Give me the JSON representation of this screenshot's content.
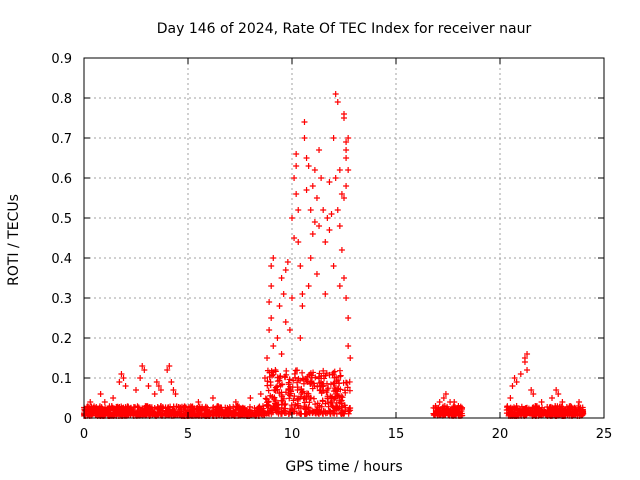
{
  "chart_data": {
    "type": "scatter",
    "title": "Day 146 of 2024, Rate Of TEC Index for receiver naur",
    "xlabel": "GPS time / hours",
    "ylabel": "ROTI / TECUs",
    "xlim": [
      0,
      25
    ],
    "ylim": [
      0,
      0.9
    ],
    "xticks": [
      "0",
      "5",
      "10",
      "15",
      "20",
      "25"
    ],
    "yticks": [
      "0",
      "0.1",
      "0.2",
      "0.3",
      "0.4",
      "0.5",
      "0.6",
      "0.7",
      "0.8",
      "0.9"
    ],
    "grid": true,
    "marker": "plus",
    "color": "#ff0000",
    "segments": [
      {
        "x_range": [
          0.0,
          8.7
        ],
        "baseline_range": [
          0.005,
          0.03
        ]
      },
      {
        "x_range": [
          8.7,
          12.8
        ],
        "baseline_range": [
          0.01,
          0.12
        ]
      },
      {
        "x_range": [
          16.8,
          18.2
        ],
        "baseline_range": [
          0.005,
          0.03
        ]
      },
      {
        "x_range": [
          20.3,
          24.0
        ],
        "baseline_range": [
          0.005,
          0.03
        ]
      }
    ],
    "points": [
      [
        0.3,
        0.04
      ],
      [
        0.8,
        0.06
      ],
      [
        1.0,
        0.04
      ],
      [
        1.4,
        0.05
      ],
      [
        1.7,
        0.09
      ],
      [
        1.8,
        0.11
      ],
      [
        1.9,
        0.1
      ],
      [
        2.0,
        0.08
      ],
      [
        2.5,
        0.07
      ],
      [
        2.7,
        0.1
      ],
      [
        2.8,
        0.13
      ],
      [
        2.9,
        0.12
      ],
      [
        3.1,
        0.08
      ],
      [
        3.4,
        0.06
      ],
      [
        3.5,
        0.09
      ],
      [
        3.6,
        0.08
      ],
      [
        3.7,
        0.07
      ],
      [
        4.0,
        0.12
      ],
      [
        4.1,
        0.13
      ],
      [
        4.2,
        0.09
      ],
      [
        4.3,
        0.07
      ],
      [
        4.4,
        0.06
      ],
      [
        5.5,
        0.04
      ],
      [
        6.2,
        0.05
      ],
      [
        7.3,
        0.04
      ],
      [
        8.0,
        0.05
      ],
      [
        8.5,
        0.06
      ],
      [
        8.7,
        0.1
      ],
      [
        8.8,
        0.15
      ],
      [
        8.9,
        0.22
      ],
      [
        8.9,
        0.29
      ],
      [
        9.0,
        0.33
      ],
      [
        9.0,
        0.38
      ],
      [
        9.1,
        0.4
      ],
      [
        9.0,
        0.25
      ],
      [
        9.1,
        0.18
      ],
      [
        9.2,
        0.12
      ],
      [
        9.3,
        0.2
      ],
      [
        9.4,
        0.28
      ],
      [
        9.5,
        0.35
      ],
      [
        9.6,
        0.31
      ],
      [
        9.7,
        0.37
      ],
      [
        9.8,
        0.39
      ],
      [
        9.7,
        0.24
      ],
      [
        9.9,
        0.22
      ],
      [
        10.0,
        0.3
      ],
      [
        10.0,
        0.5
      ],
      [
        10.1,
        0.45
      ],
      [
        10.1,
        0.6
      ],
      [
        10.2,
        0.56
      ],
      [
        10.2,
        0.63
      ],
      [
        10.2,
        0.66
      ],
      [
        10.3,
        0.44
      ],
      [
        10.3,
        0.52
      ],
      [
        10.4,
        0.38
      ],
      [
        10.5,
        0.31
      ],
      [
        10.6,
        0.74
      ],
      [
        10.6,
        0.7
      ],
      [
        10.7,
        0.57
      ],
      [
        10.7,
        0.65
      ],
      [
        10.8,
        0.63
      ],
      [
        10.9,
        0.4
      ],
      [
        10.9,
        0.52
      ],
      [
        11.0,
        0.46
      ],
      [
        11.0,
        0.58
      ],
      [
        11.1,
        0.49
      ],
      [
        11.1,
        0.62
      ],
      [
        11.2,
        0.55
      ],
      [
        11.3,
        0.67
      ],
      [
        11.3,
        0.48
      ],
      [
        11.4,
        0.6
      ],
      [
        11.5,
        0.52
      ],
      [
        11.6,
        0.44
      ],
      [
        11.7,
        0.5
      ],
      [
        11.8,
        0.47
      ],
      [
        11.8,
        0.59
      ],
      [
        11.9,
        0.51
      ],
      [
        12.0,
        0.7
      ],
      [
        12.1,
        0.81
      ],
      [
        12.2,
        0.79
      ],
      [
        12.1,
        0.6
      ],
      [
        12.2,
        0.52
      ],
      [
        12.3,
        0.48
      ],
      [
        12.4,
        0.56
      ],
      [
        12.5,
        0.76
      ],
      [
        12.5,
        0.75
      ],
      [
        12.6,
        0.69
      ],
      [
        12.6,
        0.67
      ],
      [
        12.7,
        0.62
      ],
      [
        12.6,
        0.65
      ],
      [
        12.7,
        0.7
      ],
      [
        12.4,
        0.42
      ],
      [
        12.5,
        0.35
      ],
      [
        12.6,
        0.3
      ],
      [
        12.7,
        0.25
      ],
      [
        12.7,
        0.18
      ],
      [
        12.8,
        0.15
      ],
      [
        12.5,
        0.55
      ],
      [
        12.6,
        0.58
      ],
      [
        12.3,
        0.62
      ],
      [
        10.5,
        0.28
      ],
      [
        10.8,
        0.33
      ],
      [
        11.2,
        0.36
      ],
      [
        11.6,
        0.31
      ],
      [
        12.0,
        0.38
      ],
      [
        12.3,
        0.33
      ],
      [
        9.5,
        0.16
      ],
      [
        10.4,
        0.2
      ],
      [
        16.9,
        0.03
      ],
      [
        17.1,
        0.04
      ],
      [
        17.3,
        0.05
      ],
      [
        17.4,
        0.06
      ],
      [
        17.6,
        0.04
      ],
      [
        17.8,
        0.04
      ],
      [
        18.0,
        0.03
      ],
      [
        20.5,
        0.05
      ],
      [
        20.6,
        0.08
      ],
      [
        20.7,
        0.1
      ],
      [
        20.8,
        0.09
      ],
      [
        21.0,
        0.11
      ],
      [
        21.2,
        0.14
      ],
      [
        21.2,
        0.15
      ],
      [
        21.3,
        0.16
      ],
      [
        21.3,
        0.12
      ],
      [
        21.5,
        0.07
      ],
      [
        21.6,
        0.06
      ],
      [
        22.0,
        0.04
      ],
      [
        22.5,
        0.05
      ],
      [
        22.7,
        0.07
      ],
      [
        22.8,
        0.06
      ],
      [
        23.0,
        0.04
      ],
      [
        23.4,
        0.03
      ],
      [
        23.8,
        0.04
      ]
    ]
  }
}
